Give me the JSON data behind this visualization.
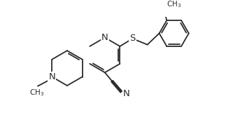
{
  "bg_color": "#ffffff",
  "line_color": "#2a2a2a",
  "line_width": 1.3,
  "figsize": [
    3.53,
    1.71
  ],
  "dpi": 100,
  "xlim": [
    0,
    10.5
  ],
  "ylim": [
    0,
    5.0
  ]
}
